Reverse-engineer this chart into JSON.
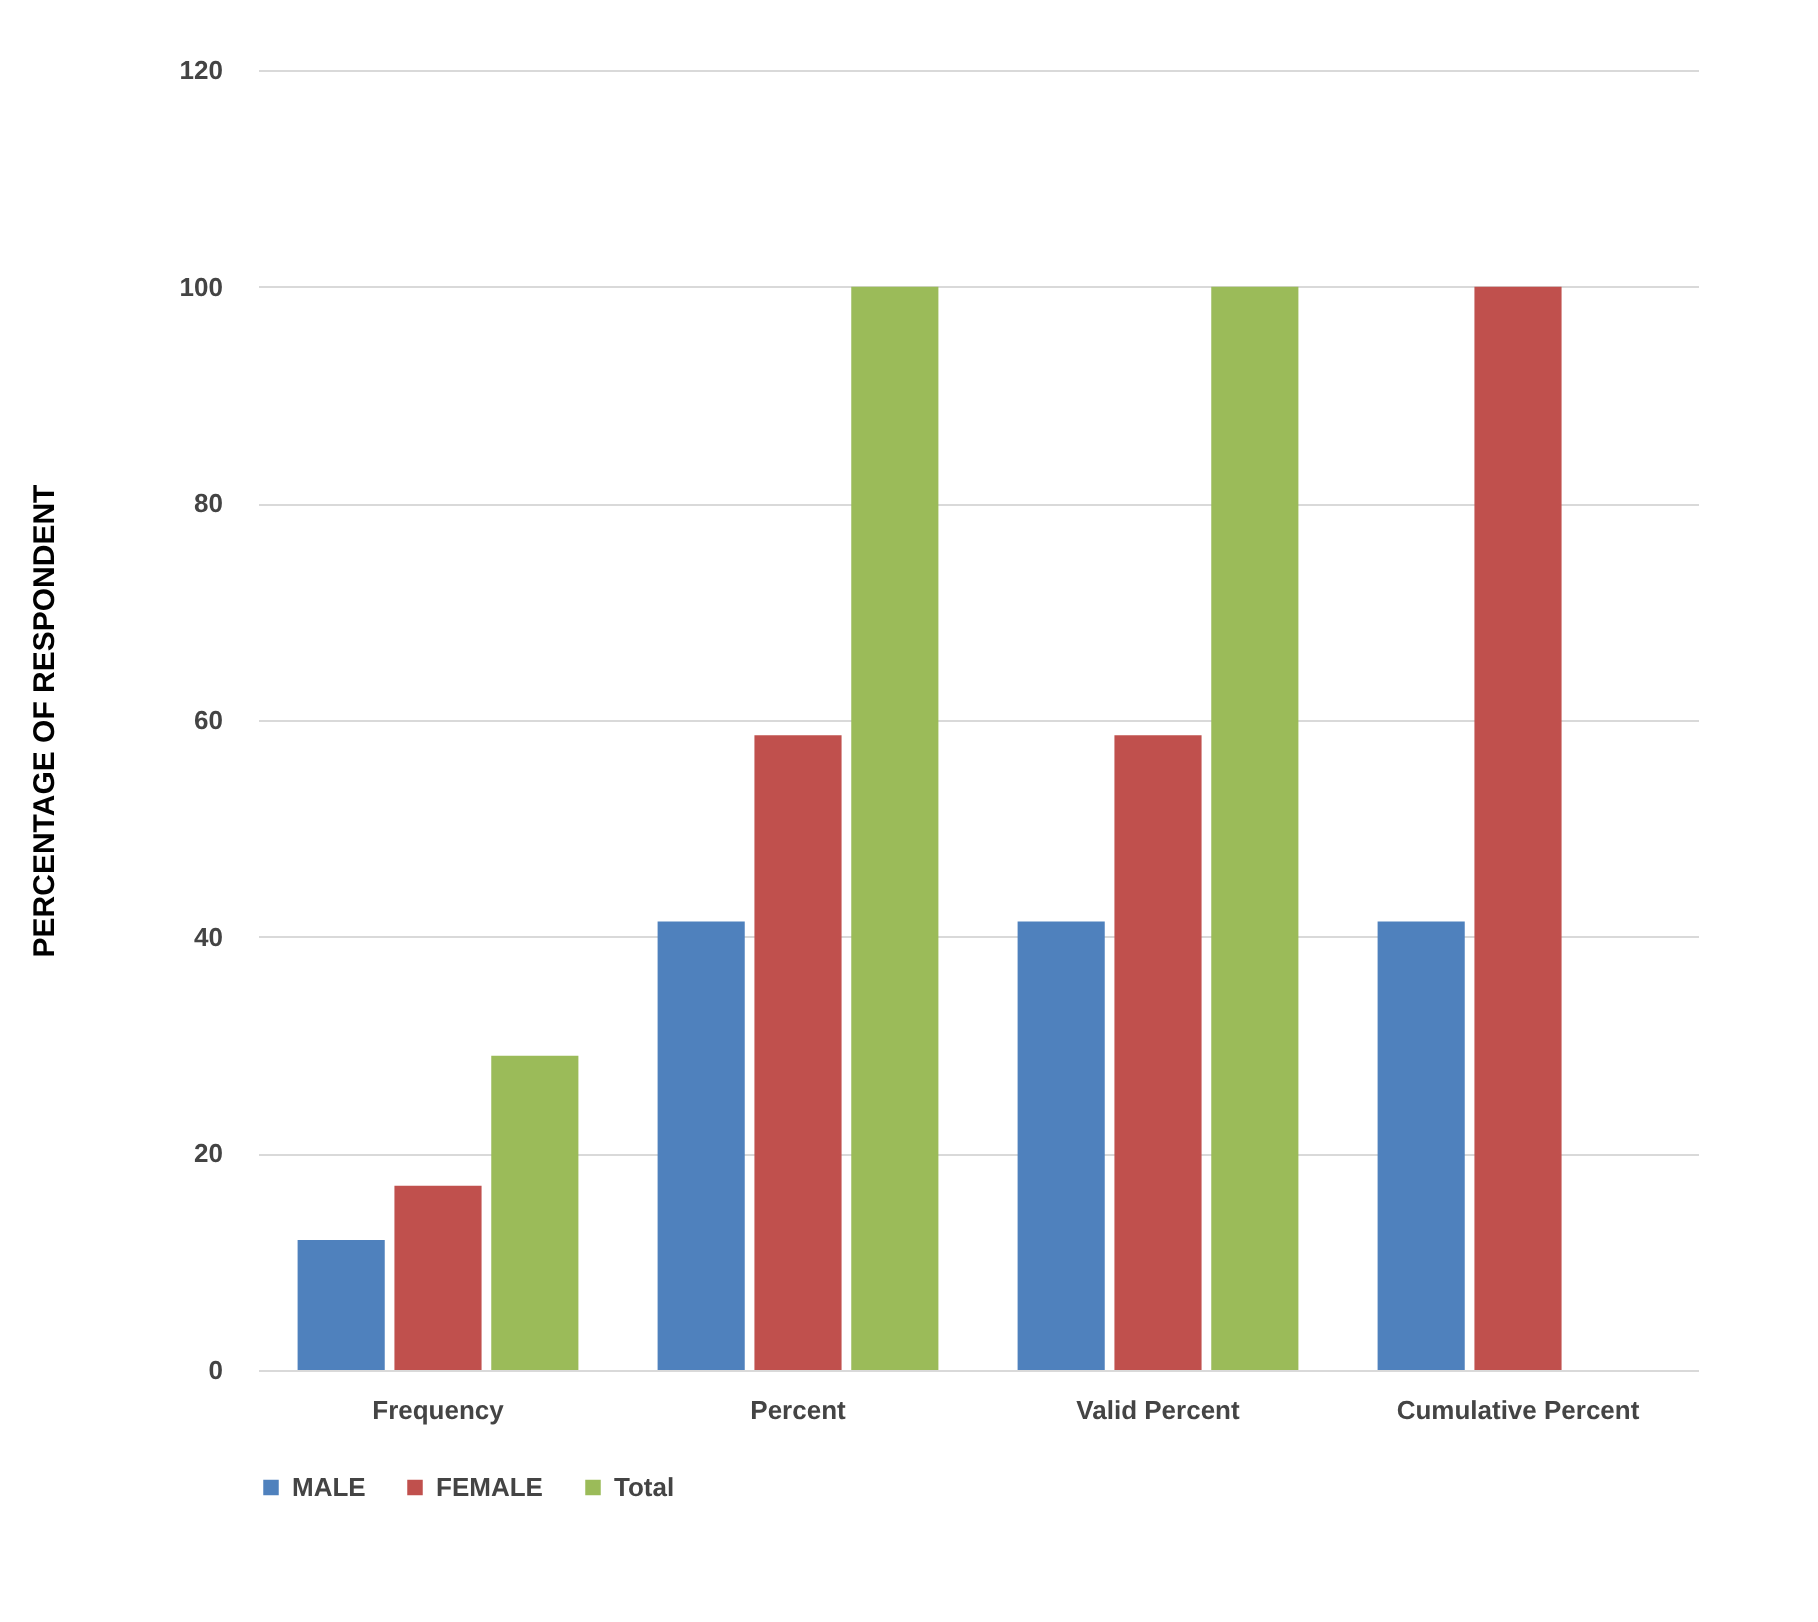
{
  "chart_data": {
    "type": "bar",
    "ylabel": "PERCENTAGE OF RESPONDENT",
    "categories": [
      "Frequency",
      "Percent",
      "Valid Percent",
      "Cumulative Percent"
    ],
    "series": [
      {
        "name": "MALE",
        "color": "#4f81bd",
        "values": [
          12,
          41.4,
          41.4,
          41.4
        ]
      },
      {
        "name": "FEMALE",
        "color": "#c0504d",
        "values": [
          17,
          58.6,
          58.6,
          100
        ]
      },
      {
        "name": "Total",
        "color": "#9bbb59",
        "values": [
          29,
          100,
          100,
          null
        ]
      }
    ],
    "ylim": [
      0,
      120
    ],
    "yticks": [
      0,
      20,
      40,
      60,
      80,
      100,
      120
    ],
    "grid": "y",
    "legend": "bottom"
  }
}
